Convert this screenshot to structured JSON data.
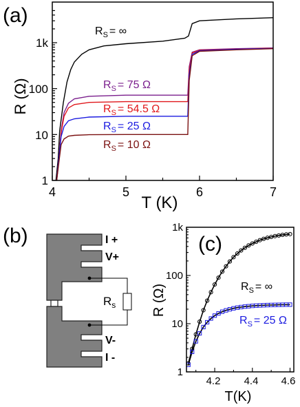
{
  "colors": {
    "axis": "#000000",
    "device_fill": "#808080",
    "black": "#000000",
    "purple": "#7a1e8c",
    "red": "#e0161a",
    "blue": "#1a1ae0",
    "darkred": "#7a1010"
  },
  "chart_data": [
    {
      "panel_label": "(a)",
      "type": "line",
      "xlabel": "T (K)",
      "ylabel": "R (Ω)",
      "xlim": [
        4,
        7
      ],
      "ylim": [
        1,
        5000
      ],
      "yscale": "log",
      "x_ticks": [
        "4",
        "5",
        "6",
        "7"
      ],
      "y_ticks": [
        "1",
        "10",
        "100",
        "1k"
      ],
      "grid": false,
      "series": [
        {
          "name": "R_S = ∞",
          "label_main": "R",
          "label_sub": "S",
          "label_rest": "= ∞",
          "color": "#000000",
          "points": [
            [
              4.05,
              1.0
            ],
            [
              4.08,
              3
            ],
            [
              4.1,
              12
            ],
            [
              4.15,
              50
            ],
            [
              4.2,
              140
            ],
            [
              4.25,
              260
            ],
            [
              4.3,
              380
            ],
            [
              4.4,
              560
            ],
            [
              4.5,
              700
            ],
            [
              4.7,
              850
            ],
            [
              5.0,
              950
            ],
            [
              5.5,
              1080
            ],
            [
              5.8,
              1250
            ],
            [
              5.85,
              1400
            ],
            [
              5.9,
              2600
            ],
            [
              6.0,
              3000
            ],
            [
              6.5,
              3300
            ],
            [
              7.0,
              3500
            ]
          ]
        },
        {
          "name": "R_S = 75 Ω",
          "label_main": "R",
          "label_sub": "S",
          "label_rest": "= 75 Ω",
          "color": "#7a1e8c",
          "points": [
            [
              4.06,
              1.0
            ],
            [
              4.09,
              3
            ],
            [
              4.12,
              12
            ],
            [
              4.16,
              30
            ],
            [
              4.22,
              48
            ],
            [
              4.3,
              60
            ],
            [
              4.5,
              68
            ],
            [
              5.0,
              72
            ],
            [
              5.84,
              72
            ],
            [
              5.86,
              300
            ],
            [
              5.9,
              620
            ],
            [
              6.0,
              700
            ],
            [
              6.5,
              740
            ],
            [
              7.0,
              770
            ]
          ]
        },
        {
          "name": "R_S = 54.5 Ω",
          "label_main": "R",
          "label_sub": "S",
          "label_rest": "= 54.5 Ω",
          "color": "#e0161a",
          "points": [
            [
              4.06,
              1.0
            ],
            [
              4.09,
              3
            ],
            [
              4.12,
              11
            ],
            [
              4.16,
              25
            ],
            [
              4.22,
              38
            ],
            [
              4.3,
              45
            ],
            [
              4.5,
              50
            ],
            [
              5.0,
              52
            ],
            [
              5.84,
              52
            ],
            [
              5.86,
              260
            ],
            [
              5.9,
              600
            ],
            [
              6.0,
              690
            ],
            [
              6.5,
              730
            ],
            [
              7.0,
              760
            ]
          ]
        },
        {
          "name": "R_S = 25 Ω",
          "label_main": "R",
          "label_sub": "S",
          "label_rest": "= 25 Ω",
          "color": "#1a1ae0",
          "points": [
            [
              4.06,
              1.0
            ],
            [
              4.09,
              3
            ],
            [
              4.12,
              9
            ],
            [
              4.16,
              15
            ],
            [
              4.22,
              20
            ],
            [
              4.3,
              22
            ],
            [
              4.5,
              24
            ],
            [
              5.0,
              25
            ],
            [
              5.84,
              25
            ],
            [
              5.86,
              200
            ],
            [
              5.9,
              560
            ],
            [
              6.0,
              670
            ],
            [
              6.5,
              720
            ],
            [
              7.0,
              750
            ]
          ]
        },
        {
          "name": "R_S = 10 Ω",
          "label_main": "R",
          "label_sub": "S",
          "label_rest": "= 10 Ω",
          "color": "#7a1010",
          "points": [
            [
              4.06,
              1.0
            ],
            [
              4.09,
              2.5
            ],
            [
              4.12,
              6
            ],
            [
              4.16,
              8
            ],
            [
              4.22,
              9.2
            ],
            [
              4.3,
              9.6
            ],
            [
              4.5,
              9.9
            ],
            [
              5.0,
              10
            ],
            [
              5.84,
              10
            ],
            [
              5.86,
              150
            ],
            [
              5.9,
              520
            ],
            [
              6.0,
              650
            ],
            [
              6.5,
              700
            ],
            [
              7.0,
              740
            ]
          ]
        }
      ]
    },
    {
      "panel_label": "(c)",
      "type": "scatter",
      "xlabel": "T(K)",
      "ylabel": "R (Ω)",
      "xlim": [
        4.05,
        4.62
      ],
      "ylim": [
        1,
        1000
      ],
      "yscale": "log",
      "x_ticks": [
        "4.2",
        "4.4",
        "4.6"
      ],
      "y_ticks": [
        "1",
        "10",
        "100",
        "1k"
      ],
      "grid": false,
      "series": [
        {
          "name": "R_S = ∞",
          "label_main": "R",
          "label_sub": "S",
          "label_rest": "= ∞",
          "color": "#000000",
          "marker": "circle",
          "x": [
            4.06,
            4.08,
            4.1,
            4.12,
            4.14,
            4.16,
            4.18,
            4.2,
            4.22,
            4.24,
            4.26,
            4.28,
            4.3,
            4.32,
            4.34,
            4.36,
            4.38,
            4.4,
            4.42,
            4.44,
            4.46,
            4.48,
            4.5,
            4.52,
            4.54,
            4.56,
            4.58,
            4.6
          ],
          "y": [
            1.5,
            3,
            6,
            11,
            19,
            30,
            45,
            65,
            90,
            120,
            155,
            195,
            240,
            285,
            330,
            375,
            420,
            460,
            500,
            540,
            575,
            605,
            630,
            655,
            675,
            695,
            710,
            720
          ]
        },
        {
          "name": "R_S = 25 Ω",
          "label_main": "R",
          "label_sub": "S",
          "label_rest": "= 25 Ω",
          "color": "#1a1ae0",
          "marker": "square",
          "x": [
            4.06,
            4.08,
            4.1,
            4.12,
            4.14,
            4.16,
            4.18,
            4.2,
            4.22,
            4.24,
            4.26,
            4.28,
            4.3,
            4.32,
            4.34,
            4.36,
            4.38,
            4.4,
            4.42,
            4.44,
            4.46,
            4.48,
            4.5,
            4.52,
            4.54,
            4.56,
            4.58,
            4.6
          ],
          "y": [
            1.4,
            2.6,
            4.3,
            6.3,
            8.5,
            10.7,
            12.8,
            14.7,
            16.3,
            17.7,
            18.9,
            19.9,
            20.8,
            21.5,
            22.1,
            22.6,
            23.0,
            23.4,
            23.7,
            23.9,
            24.1,
            24.3,
            24.4,
            24.5,
            24.6,
            24.7,
            24.8,
            24.8
          ]
        }
      ]
    }
  ],
  "schematic": {
    "panel_label": "(b)",
    "terminals": [
      "I +",
      "V+",
      "V-",
      "I -"
    ],
    "resistor_main": "R",
    "resistor_sub": "s"
  }
}
